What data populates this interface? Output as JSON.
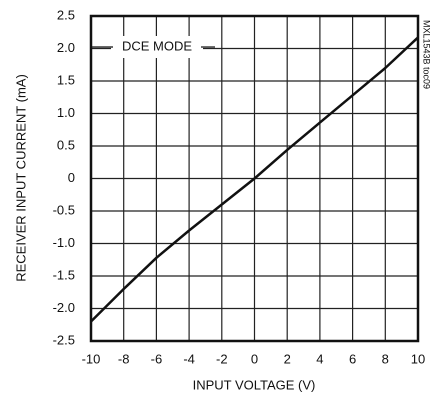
{
  "chart_data": {
    "type": "line",
    "xlabel": "INPUT VOLTAGE (V)",
    "ylabel": "RECEIVER INPUT CURRENT (mA)",
    "annotation": "DCE MODE",
    "side_note": "MXL1543B toc09",
    "x": [
      -10,
      -8,
      -6,
      -4,
      -2,
      0,
      2,
      4,
      6,
      8,
      10
    ],
    "values": [
      -2.2,
      -1.7,
      -1.22,
      -0.8,
      -0.4,
      0,
      0.44,
      0.86,
      1.28,
      1.7,
      2.17
    ],
    "color": "#111111",
    "xlim": [
      -10,
      10
    ],
    "xticks": [
      -10,
      -8,
      -6,
      -4,
      -2,
      0,
      2,
      4,
      6,
      8,
      10
    ],
    "ylim": [
      -2.5,
      2.5
    ],
    "yticks": [
      -2.5,
      {
        "value": -2,
        "label": "-2.0"
      },
      -1.5,
      {
        "value": -1,
        "label": "-1.0"
      },
      -0.5,
      0,
      0.5,
      {
        "value": 1,
        "label": "1.0"
      },
      1.5,
      {
        "value": 2,
        "label": "2.0"
      },
      2.5
    ],
    "grid": true
  }
}
